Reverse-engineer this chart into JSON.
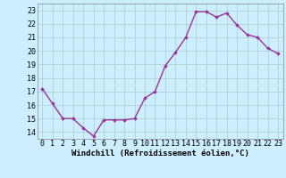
{
  "x": [
    0,
    1,
    2,
    3,
    4,
    5,
    6,
    7,
    8,
    9,
    10,
    11,
    12,
    13,
    14,
    15,
    16,
    17,
    18,
    19,
    20,
    21,
    22,
    23
  ],
  "y": [
    17.2,
    16.1,
    15.0,
    15.0,
    14.3,
    13.7,
    14.9,
    14.9,
    14.9,
    15.0,
    16.5,
    17.0,
    18.9,
    19.9,
    21.0,
    22.9,
    22.9,
    22.5,
    22.8,
    21.9,
    21.2,
    21.0,
    20.2,
    19.8
  ],
  "line_color": "#993399",
  "marker": "D",
  "marker_size": 1.8,
  "bg_color": "#cceeff",
  "grid_color": "#aacccc",
  "xlabel": "Windchill (Refroidissement éolien,°C)",
  "ylabel_ticks": [
    14,
    15,
    16,
    17,
    18,
    19,
    20,
    21,
    22,
    23
  ],
  "xtick_labels": [
    "0",
    "1",
    "2",
    "3",
    "4",
    "5",
    "6",
    "7",
    "8",
    "9",
    "10",
    "11",
    "12",
    "13",
    "14",
    "15",
    "16",
    "17",
    "18",
    "19",
    "20",
    "21",
    "22",
    "23"
  ],
  "ylim": [
    13.5,
    23.5
  ],
  "xlim": [
    -0.5,
    23.5
  ],
  "xlabel_fontsize": 6.5,
  "tick_fontsize": 6.0,
  "line_width": 1.0
}
